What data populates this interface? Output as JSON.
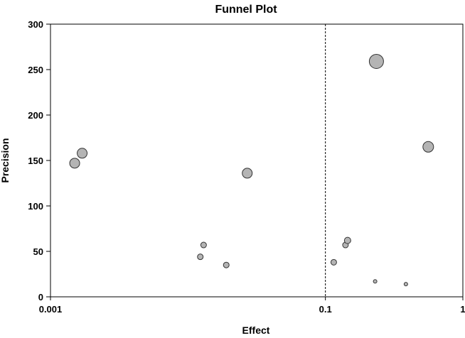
{
  "chart_data": {
    "type": "scatter",
    "title": "Funnel Plot",
    "xlabel": "Effect",
    "ylabel": "Precision",
    "x_scale": "log",
    "xlim": [
      0.001,
      1
    ],
    "ylim": [
      0,
      300
    ],
    "x_ticks": [
      {
        "value": 0.001,
        "label": "0.001"
      },
      {
        "value": 0.1,
        "label": "0.1"
      },
      {
        "value": 1,
        "label": "1"
      }
    ],
    "y_ticks": [
      {
        "value": 0,
        "label": "0"
      },
      {
        "value": 50,
        "label": "50"
      },
      {
        "value": 100,
        "label": "100"
      },
      {
        "value": 150,
        "label": "150"
      },
      {
        "value": 200,
        "label": "200"
      },
      {
        "value": 250,
        "label": "250"
      },
      {
        "value": 300,
        "label": "300"
      }
    ],
    "reference_line": {
      "x": 0.1,
      "style": "dashed"
    },
    "marker_color": "#b4b4b4",
    "marker_edge": "#333333",
    "points": [
      {
        "x": 0.0015,
        "y": 147,
        "size": 7
      },
      {
        "x": 0.0017,
        "y": 158,
        "size": 7
      },
      {
        "x": 0.0123,
        "y": 44,
        "size": 4
      },
      {
        "x": 0.013,
        "y": 57,
        "size": 4
      },
      {
        "x": 0.019,
        "y": 35,
        "size": 4
      },
      {
        "x": 0.027,
        "y": 136,
        "size": 7
      },
      {
        "x": 0.115,
        "y": 38,
        "size": 4
      },
      {
        "x": 0.14,
        "y": 57,
        "size": 4
      },
      {
        "x": 0.145,
        "y": 62,
        "size": 4.5
      },
      {
        "x": 0.23,
        "y": 17,
        "size": 2.5
      },
      {
        "x": 0.235,
        "y": 259,
        "size": 10
      },
      {
        "x": 0.385,
        "y": 14,
        "size": 2.5
      },
      {
        "x": 0.56,
        "y": 165,
        "size": 7.5
      }
    ]
  }
}
